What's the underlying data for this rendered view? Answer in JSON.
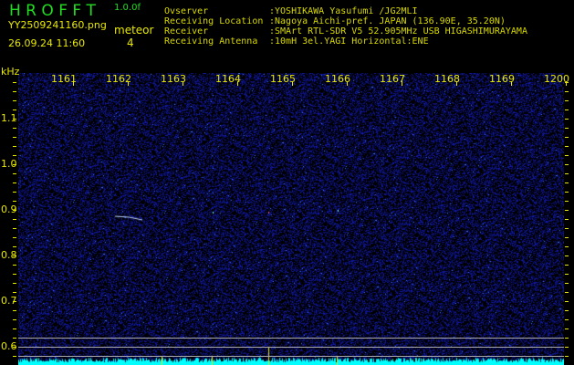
{
  "header": {
    "app_name": "H R O F F T",
    "version": "1.0.0f",
    "filename": "YY2509241160.png",
    "datetime": "26.09.24 11:60",
    "meteor_label": "meteor",
    "meteor_count": "4"
  },
  "info": [
    {
      "label": "Ovserver",
      "value": ":YOSHIKAWA Yasufumi /JG2MLI"
    },
    {
      "label": "Receiving Location",
      "value": ":Nagoya Aichi-pref. JAPAN (136.90E, 35.20N)"
    },
    {
      "label": "Receiver",
      "value": ":SMArt RTL-SDR V5 52.905MHz USB HIGASHIMURAYAMA"
    },
    {
      "label": "Receiving Antenna",
      "value": ":10mH 3el.YAGI Horizontal:ENE"
    }
  ],
  "axes": {
    "y_unit": "kHz",
    "x_ticks": [
      "1161",
      "1162",
      "1163",
      "1164",
      "1165",
      "1166",
      "1167",
      "1168",
      "1169",
      "1200"
    ],
    "y_ticks": [
      "1.1",
      "1.0",
      "0.9",
      "0.8",
      "0.7",
      "0.6"
    ]
  },
  "colors": {
    "background": "#000000",
    "noise": "#1a1aa0",
    "text": "#e8e800",
    "title": "#22dd22",
    "spectrum": "#00ffff"
  }
}
